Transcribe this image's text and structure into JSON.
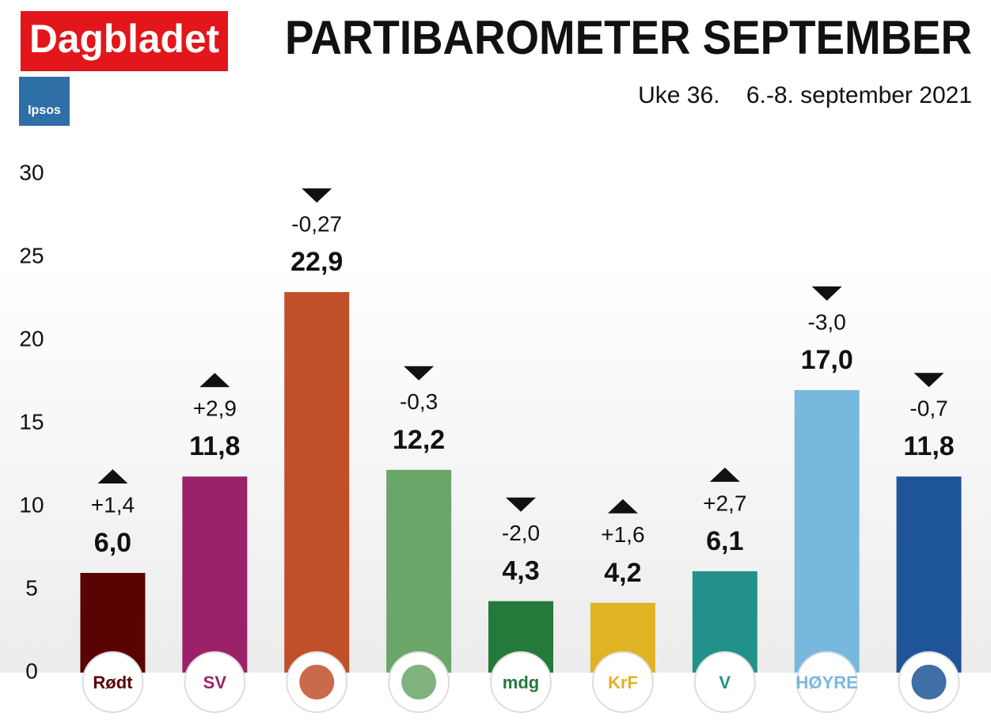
{
  "header": {
    "brand": "Dagbladet",
    "pollster": "Ipsos"
  },
  "chart_data": {
    "type": "bar",
    "title": "PARTIBAROMETER SEPTEMBER",
    "subtitle": "Uke 36.    6.-8. september 2021",
    "categories": [
      "Rødt",
      "SV",
      null,
      null,
      "mdg",
      "KrF",
      "V",
      "HØYRE",
      null
    ],
    "values": [
      6.0,
      11.8,
      22.9,
      12.2,
      4.3,
      4.2,
      6.1,
      17.0,
      11.8
    ],
    "value_labels": [
      "6,0",
      "11,8",
      "22,9",
      "12,2",
      "4,3",
      "4,2",
      "6,1",
      "17,0",
      "11,8"
    ],
    "changes": [
      1.4,
      2.9,
      -0.27,
      -0.3,
      -2.0,
      1.6,
      2.7,
      -3.0,
      -0.7
    ],
    "change_labels": [
      "+1,4",
      "+2,9",
      "-0,27",
      "-0,3",
      "-2,0",
      "+1,6",
      "+2,7",
      "-3,0",
      "-0,7"
    ],
    "colors": [
      "#5a0303",
      "#9b2268",
      "#c0502a",
      "#6aa56a",
      "#237a3a",
      "#e0b324",
      "#22918a",
      "#79b8de",
      "#1e5598"
    ],
    "ylim": [
      0,
      30
    ],
    "yticks": [
      0,
      5,
      10,
      15,
      20,
      25,
      30
    ],
    "grid": false
  }
}
